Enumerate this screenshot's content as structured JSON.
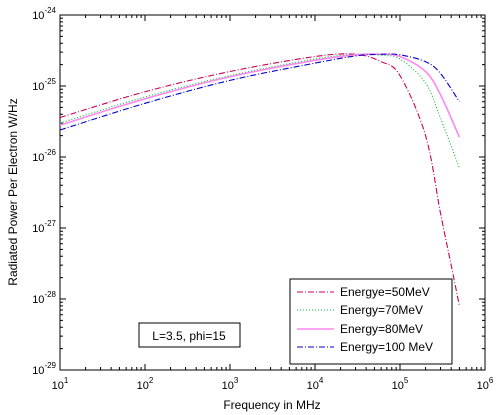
{
  "chart_data": {
    "type": "line",
    "title": "",
    "xlabel": "Frequency in MHz",
    "ylabel": "Radiated Power  Per Electron W/Hz",
    "x_scale": "log",
    "y_scale": "log",
    "xlim": [
      10,
      1000000
    ],
    "ylim": [
      1e-29,
      1e-24
    ],
    "grid": false,
    "legend_position": "bottom-right",
    "x_tick_labels": [
      {
        "base": "10",
        "exp": "1"
      },
      {
        "base": "10",
        "exp": "2"
      },
      {
        "base": "10",
        "exp": "3"
      },
      {
        "base": "10",
        "exp": "4"
      },
      {
        "base": "10",
        "exp": "5"
      },
      {
        "base": "10",
        "exp": "6"
      }
    ],
    "y_tick_labels": [
      {
        "base": "10",
        "exp": "-29"
      },
      {
        "base": "10",
        "exp": "-28"
      },
      {
        "base": "10",
        "exp": "-27"
      },
      {
        "base": "10",
        "exp": "-26"
      },
      {
        "base": "10",
        "exp": "-25"
      },
      {
        "base": "10",
        "exp": "-24"
      }
    ],
    "annotation": "L=3.5, phi=15",
    "series": [
      {
        "name": "Energye=50MeV",
        "color": "#cc0055",
        "dash": "dash-dot",
        "points": [
          [
            10,
            3.6e-26
          ],
          [
            100,
            8.3e-26
          ],
          [
            1000,
            1.6e-25
          ],
          [
            10000,
            2.6e-25
          ],
          [
            30000,
            2.8e-25
          ],
          [
            60000,
            2.2e-25
          ],
          [
            100000,
            1.4e-25
          ],
          [
            200000,
            2e-26
          ],
          [
            300000,
            1.6e-27
          ],
          [
            400000,
            3e-28
          ],
          [
            500000,
            8e-29
          ]
        ]
      },
      {
        "name": "Energy=70MeV",
        "color": "#00bb33",
        "dash": "dotted",
        "points": [
          [
            10,
            3e-26
          ],
          [
            100,
            7e-26
          ],
          [
            1000,
            1.4e-25
          ],
          [
            10000,
            2.4e-25
          ],
          [
            30000,
            2.8e-25
          ],
          [
            60000,
            2.7e-25
          ],
          [
            100000,
            2.4e-25
          ],
          [
            200000,
            1.1e-25
          ],
          [
            300000,
            3.5e-26
          ],
          [
            500000,
            7e-27
          ]
        ]
      },
      {
        "name": "Energy=80MeV",
        "color": "#ff88ee",
        "dash": "solid",
        "points": [
          [
            10,
            2.8e-26
          ],
          [
            100,
            6.6e-26
          ],
          [
            1000,
            1.35e-25
          ],
          [
            10000,
            2.3e-25
          ],
          [
            30000,
            2.75e-25
          ],
          [
            60000,
            2.8e-25
          ],
          [
            100000,
            2.6e-25
          ],
          [
            200000,
            1.6e-25
          ],
          [
            300000,
            7.5e-26
          ],
          [
            500000,
            1.9e-26
          ]
        ]
      },
      {
        "name": "Energy=100 MeV",
        "color": "#0000cc",
        "dash": "dash-dot",
        "points": [
          [
            10,
            2.4e-26
          ],
          [
            100,
            5.7e-26
          ],
          [
            1000,
            1.2e-25
          ],
          [
            10000,
            2.1e-25
          ],
          [
            30000,
            2.65e-25
          ],
          [
            60000,
            2.8e-25
          ],
          [
            100000,
            2.75e-25
          ],
          [
            200000,
            2.2e-25
          ],
          [
            300000,
            1.5e-25
          ],
          [
            500000,
            6e-26
          ]
        ]
      }
    ]
  }
}
